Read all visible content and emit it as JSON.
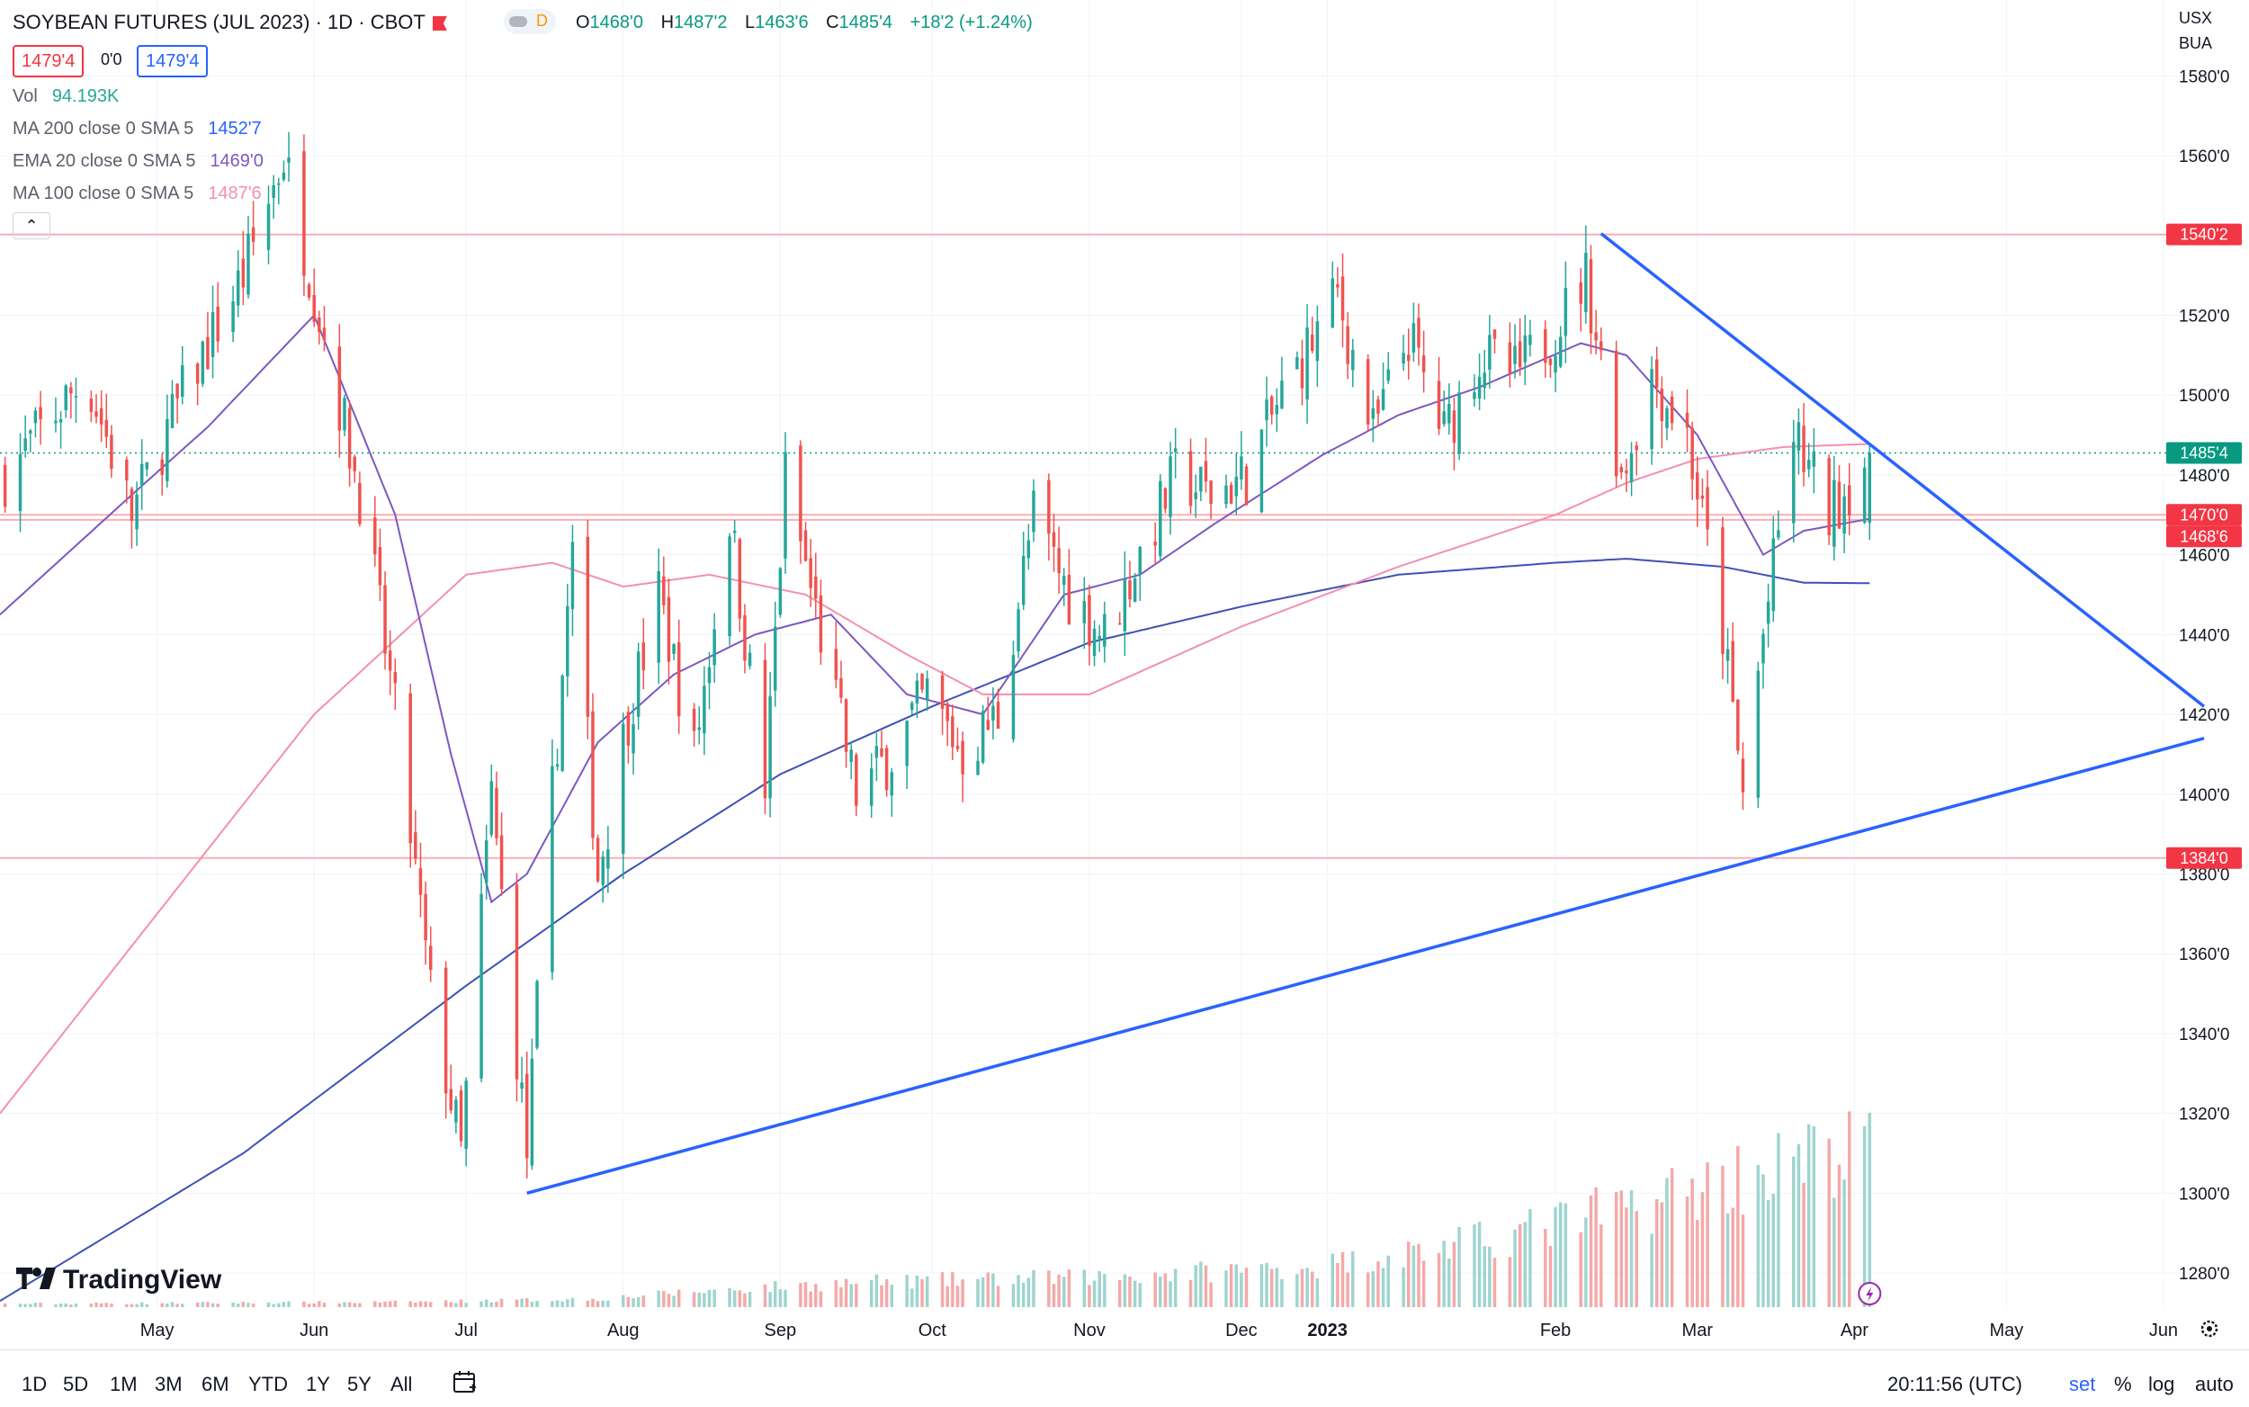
{
  "header": {
    "title": "SOYBEAN FUTURES (JUL 2023) · 1D · CBOT",
    "toggle_label": "D",
    "ohlc": [
      {
        "key": "O",
        "value": "1468'0"
      },
      {
        "key": "H",
        "value": "1487'2"
      },
      {
        "key": "L",
        "value": "1463'6"
      },
      {
        "key": "C",
        "value": "1485'4"
      }
    ],
    "change": "+18'2 (+1.24%)",
    "sell_price": "1479'4",
    "spread": "0'0",
    "buy_price": "1479'4"
  },
  "indicators": [
    {
      "label": "Vol",
      "value": "94.193K",
      "color": "#26a69a"
    },
    {
      "label": "MA 200 close 0 SMA 5",
      "value": "1452'7",
      "color": "#2962ff"
    },
    {
      "label": "EMA 20 close 0 SMA 5",
      "value": "1469'0",
      "color": "#7e57c2"
    },
    {
      "label": "MA 100 close 0 SMA 5",
      "value": "1487'6",
      "color": "#f48fb1"
    }
  ],
  "collapse_icon": "chevron-up-icon",
  "currency": {
    "unit": "USX",
    "sub": "BUA"
  },
  "price_tags": [
    {
      "price": 1540.25,
      "label": "1540'2",
      "bg": "#f23645"
    },
    {
      "price": 1485.5,
      "label": "1485'4",
      "bg": "#089981"
    },
    {
      "price": 1470.0,
      "label": "1470'0",
      "bg": "#f23645"
    },
    {
      "price": 1468.75,
      "label": "1468'6",
      "bg": "#f23645"
    },
    {
      "price": 1384.0,
      "label": "1384'0",
      "bg": "#f23645"
    }
  ],
  "logo_text": "TradingView",
  "bottom": {
    "timeframes": [
      "1D",
      "5D",
      "1M",
      "3M",
      "6M",
      "YTD",
      "1Y",
      "5Y",
      "All"
    ],
    "calendar_icon": "calendar-goto-icon",
    "time": "20:11:56 (UTC)",
    "right_buttons": [
      "set",
      "%",
      "log",
      "auto"
    ],
    "settings_icon": "gear-icon"
  },
  "chart_data": {
    "type": "candlestick",
    "title": "SOYBEAN FUTURES (JUL 2023) · 1D · CBOT",
    "ylim": [
      1271,
      1590
    ],
    "y_ticks": [
      1280,
      1300,
      1320,
      1340,
      1360,
      1380,
      1400,
      1420,
      1440,
      1460,
      1480,
      1500,
      1520,
      1540,
      1560,
      1580
    ],
    "y_tick_labels": [
      "1280'0",
      "1300'0",
      "1320'0",
      "1340'0",
      "1360'0",
      "1380'0",
      "1400'0",
      "1420'0",
      "1440'0",
      "1460'0",
      "1480'0",
      "1500'0",
      "1520'0",
      "1540'0",
      "1560'0",
      "1580'0"
    ],
    "x_start": "2022-04-14",
    "x_end": "2023-06-23",
    "x_labels": [
      {
        "date": "2022-05-15",
        "label": "May"
      },
      {
        "date": "2022-06-15",
        "label": "Jun"
      },
      {
        "date": "2022-07-15",
        "label": "Jul"
      },
      {
        "date": "2022-08-15",
        "label": "Aug"
      },
      {
        "date": "2022-09-15",
        "label": "Sep"
      },
      {
        "date": "2022-10-15",
        "label": "Oct"
      },
      {
        "date": "2022-11-15",
        "label": "Nov"
      },
      {
        "date": "2022-12-15",
        "label": "Dec"
      },
      {
        "date": "2023-01-01",
        "label": "2023",
        "bold": true
      },
      {
        "date": "2023-02-15",
        "label": "Feb"
      },
      {
        "date": "2023-03-15",
        "label": "Mar"
      },
      {
        "date": "2023-04-15",
        "label": "Apr"
      },
      {
        "date": "2023-05-15",
        "label": "May"
      },
      {
        "date": "2023-06-15",
        "label": "Jun"
      }
    ],
    "colors": {
      "up": "#26a69a",
      "down": "#ef5350",
      "vol_up": "#9fd4cf",
      "vol_down": "#f4a9a9",
      "trend": "#2962ff",
      "level": "#f6b1b6",
      "ema20": "#7e57c2",
      "ma100": "#f48fb1",
      "ma200": "#3f51b5"
    },
    "close_anchors": [
      [
        "2022-04-15",
        1480
      ],
      [
        "2022-05-01",
        1505
      ],
      [
        "2022-05-10",
        1470
      ],
      [
        "2022-05-20",
        1500
      ],
      [
        "2022-06-01",
        1530
      ],
      [
        "2022-06-09",
        1560
      ],
      [
        "2022-06-17",
        1515
      ],
      [
        "2022-06-25",
        1470
      ],
      [
        "2022-07-01",
        1420
      ],
      [
        "2022-07-08",
        1350
      ],
      [
        "2022-07-14",
        1310
      ],
      [
        "2022-07-20",
        1400
      ],
      [
        "2022-07-27",
        1310
      ],
      [
        "2022-08-01",
        1400
      ],
      [
        "2022-08-05",
        1460
      ],
      [
        "2022-08-10",
        1380
      ],
      [
        "2022-08-16",
        1420
      ],
      [
        "2022-08-22",
        1450
      ],
      [
        "2022-08-29",
        1410
      ],
      [
        "2022-09-05",
        1470
      ],
      [
        "2022-09-12",
        1400
      ],
      [
        "2022-09-16",
        1480
      ],
      [
        "2022-09-23",
        1440
      ],
      [
        "2022-09-30",
        1400
      ],
      [
        "2022-10-07",
        1410
      ],
      [
        "2022-10-14",
        1425
      ],
      [
        "2022-10-21",
        1410
      ],
      [
        "2022-10-28",
        1420
      ],
      [
        "2022-11-04",
        1470
      ],
      [
        "2022-11-11",
        1450
      ],
      [
        "2022-11-18",
        1440
      ],
      [
        "2022-11-25",
        1460
      ],
      [
        "2022-12-02",
        1480
      ],
      [
        "2022-12-09",
        1475
      ],
      [
        "2022-12-16",
        1480
      ],
      [
        "2022-12-23",
        1500
      ],
      [
        "2023-01-03",
        1525
      ],
      [
        "2023-01-10",
        1490
      ],
      [
        "2023-01-17",
        1515
      ],
      [
        "2023-01-24",
        1490
      ],
      [
        "2023-01-31",
        1510
      ],
      [
        "2023-02-07",
        1505
      ],
      [
        "2023-02-14",
        1515
      ],
      [
        "2023-02-21",
        1530
      ],
      [
        "2023-02-28",
        1480
      ],
      [
        "2023-03-06",
        1505
      ],
      [
        "2023-03-13",
        1490
      ],
      [
        "2023-03-20",
        1440
      ],
      [
        "2023-03-24",
        1400
      ],
      [
        "2023-03-28",
        1440
      ],
      [
        "2023-04-03",
        1490
      ],
      [
        "2023-04-10",
        1470
      ],
      [
        "2023-04-18",
        1485.5
      ]
    ],
    "last_candle": {
      "date": "2023-04-18",
      "open": 1468.0,
      "high": 1487.25,
      "low": 1463.75,
      "close": 1485.5
    },
    "volume_anchors": [
      [
        "2022-04-15",
        2
      ],
      [
        "2022-07-01",
        3
      ],
      [
        "2022-08-10",
        5
      ],
      [
        "2022-09-01",
        10
      ],
      [
        "2022-10-01",
        15
      ],
      [
        "2022-11-15",
        18
      ],
      [
        "2022-12-31",
        25
      ],
      [
        "2023-02-01",
        40
      ],
      [
        "2023-03-01",
        60
      ],
      [
        "2023-03-24",
        80
      ],
      [
        "2023-04-18",
        96
      ]
    ],
    "ema20_anchors": [
      [
        "2022-04-14",
        1445
      ],
      [
        "2022-05-10",
        1475
      ],
      [
        "2022-05-25",
        1492
      ],
      [
        "2022-06-15",
        1520
      ],
      [
        "2022-07-01",
        1470
      ],
      [
        "2022-07-12",
        1410
      ],
      [
        "2022-07-20",
        1373
      ],
      [
        "2022-07-27",
        1380
      ],
      [
        "2022-08-10",
        1413
      ],
      [
        "2022-08-25",
        1430
      ],
      [
        "2022-09-10",
        1440
      ],
      [
        "2022-09-25",
        1445
      ],
      [
        "2022-10-10",
        1425
      ],
      [
        "2022-10-25",
        1420
      ],
      [
        "2022-11-10",
        1450
      ],
      [
        "2022-11-25",
        1455
      ],
      [
        "2022-12-10",
        1468
      ],
      [
        "2022-12-31",
        1485
      ],
      [
        "2023-01-15",
        1495
      ],
      [
        "2023-01-31",
        1502
      ],
      [
        "2023-02-20",
        1513
      ],
      [
        "2023-03-01",
        1510
      ],
      [
        "2023-03-15",
        1490
      ],
      [
        "2023-03-28",
        1460
      ],
      [
        "2023-04-05",
        1466
      ],
      [
        "2023-04-18",
        1469
      ]
    ],
    "ma100_anchors": [
      [
        "2022-04-14",
        1320
      ],
      [
        "2022-05-15",
        1370
      ],
      [
        "2022-06-15",
        1420
      ],
      [
        "2022-07-15",
        1455
      ],
      [
        "2022-08-01",
        1458
      ],
      [
        "2022-08-15",
        1452
      ],
      [
        "2022-09-01",
        1455
      ],
      [
        "2022-09-20",
        1450
      ],
      [
        "2022-10-10",
        1435
      ],
      [
        "2022-10-25",
        1425
      ],
      [
        "2022-11-15",
        1425
      ],
      [
        "2022-12-15",
        1442
      ],
      [
        "2023-01-15",
        1457
      ],
      [
        "2023-02-15",
        1470
      ],
      [
        "2023-03-01",
        1478
      ],
      [
        "2023-03-15",
        1484
      ],
      [
        "2023-04-01",
        1487
      ],
      [
        "2023-04-18",
        1487.75
      ]
    ],
    "ma200_anchors": [
      [
        "2022-04-14",
        1273
      ],
      [
        "2022-06-01",
        1310
      ],
      [
        "2022-07-15",
        1352
      ],
      [
        "2022-08-15",
        1380
      ],
      [
        "2022-09-15",
        1405
      ],
      [
        "2022-10-15",
        1422
      ],
      [
        "2022-11-15",
        1438
      ],
      [
        "2022-12-15",
        1447
      ],
      [
        "2023-01-15",
        1455
      ],
      [
        "2023-02-15",
        1458
      ],
      [
        "2023-03-01",
        1459
      ],
      [
        "2023-03-20",
        1457
      ],
      [
        "2023-04-05",
        1453
      ],
      [
        "2023-04-18",
        1452.875
      ]
    ],
    "horizontal_levels": [
      1540.25,
      1470.0,
      1468.75,
      1384.0
    ],
    "current_price_line": 1485.5,
    "trendlines": [
      {
        "name": "resistance",
        "from": [
          "2023-02-24",
          1540.5
        ],
        "to": [
          "2023-06-23",
          1422
        ]
      },
      {
        "name": "support",
        "from": [
          "2022-07-27",
          1300
        ],
        "to": [
          "2023-06-23",
          1414
        ]
      }
    ],
    "watermark": "TradingView"
  }
}
